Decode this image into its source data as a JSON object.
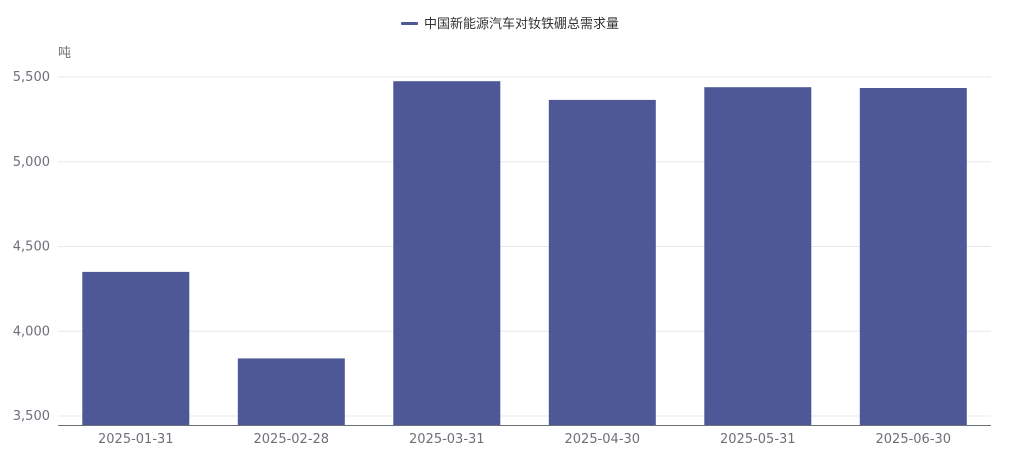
{
  "chart_data": {
    "type": "bar",
    "title": "",
    "xlabel": "",
    "ylabel": "吨",
    "categories": [
      "2025-01-31",
      "2025-02-28",
      "2025-03-31",
      "2025-04-30",
      "2025-05-31",
      "2025-06-30"
    ],
    "series": [
      {
        "name": "中国新能源汽车对钕铁硼总需求量",
        "values": [
          4350,
          3840,
          5475,
          5365,
          5440,
          5435
        ],
        "color": "#4e5896"
      }
    ],
    "ylim": [
      3450,
      5650
    ],
    "yticks": [
      3500,
      4000,
      4500,
      5000,
      5500
    ],
    "ytick_labels": [
      "3,500",
      "4,000",
      "4,500",
      "5,000",
      "5,500"
    ],
    "grid": true,
    "legend_position": "top-center"
  }
}
